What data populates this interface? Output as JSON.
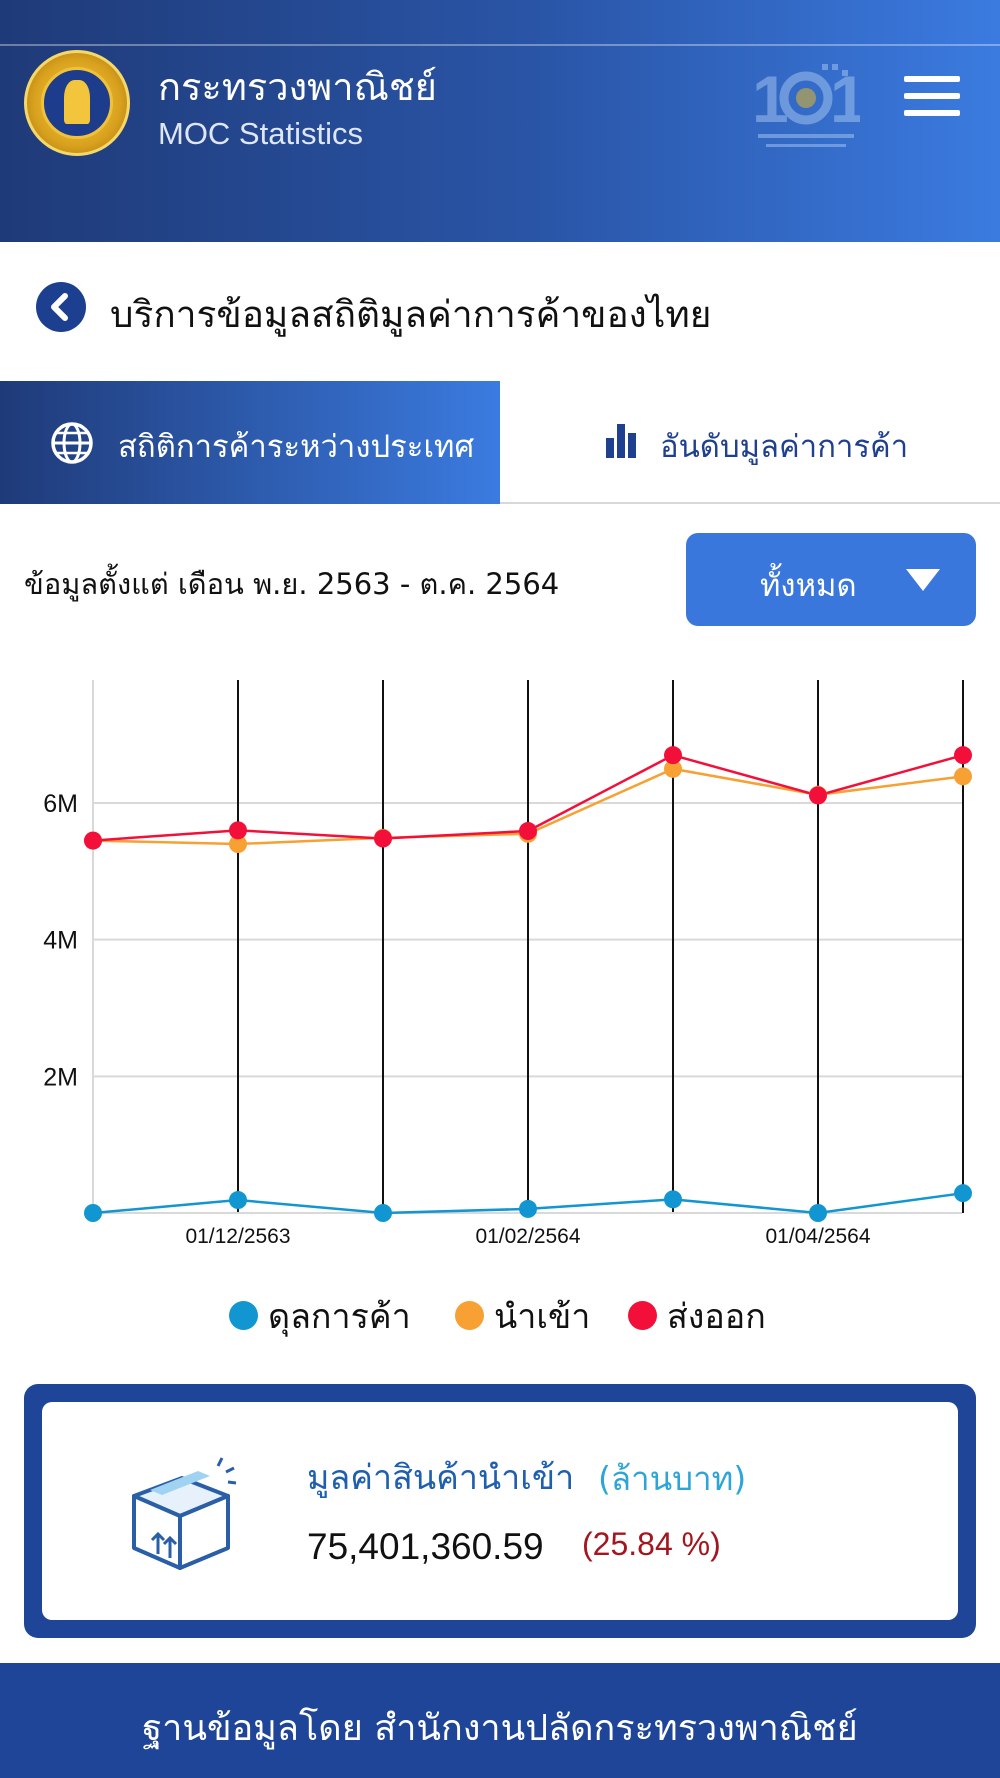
{
  "header": {
    "org_name": "กระทรวงพาณิชย์",
    "app_name": "MOC Statistics",
    "menu_icon": "hamburger-menu-icon",
    "logo_icon": "ministry-101-logo"
  },
  "page": {
    "title": "บริการข้อมูลสถิติมูลค่าการค้าของไทย",
    "back_icon": "chevron-left-icon"
  },
  "tabs": [
    {
      "label": "สถิติการค้าระหว่างประเทศ",
      "icon": "globe-icon",
      "active": true
    },
    {
      "label": "อันดับมูลค่าการค้า",
      "icon": "bar-chart-icon",
      "active": false
    }
  ],
  "filter": {
    "range_text": "ข้อมูลตั้งแต่ เดือน พ.ย. 2563 - ต.ค. 2564",
    "selected": "ทั้งหมด"
  },
  "colors": {
    "balance": "#1196d1",
    "import": "#f7a033",
    "export": "#f2103a",
    "header_dark": "#1f3a78",
    "accent_blue": "#3a77dc"
  },
  "chart_data": {
    "type": "line",
    "x": [
      "01/11/2563",
      "01/12/2563",
      "01/01/2564",
      "01/02/2564",
      "01/03/2564",
      "01/04/2564",
      "01/05/2564"
    ],
    "x_tick_labels": [
      "01/12/2563",
      "01/02/2564",
      "01/04/2564"
    ],
    "y_tick_labels": [
      "2M",
      "4M",
      "6M"
    ],
    "ylim": [
      0,
      7800000
    ],
    "series": [
      {
        "name": "ดุลการค้า",
        "values": [
          0,
          190000,
          0,
          60000,
          200000,
          0,
          290000
        ]
      },
      {
        "name": "นำเข้า",
        "values": [
          5450000,
          5400000,
          5490000,
          5550000,
          6500000,
          6120000,
          6390000
        ]
      },
      {
        "name": "ส่งออก",
        "values": [
          5450000,
          5600000,
          5480000,
          5590000,
          6700000,
          6110000,
          6700000
        ]
      }
    ],
    "grid": true,
    "legend": "bottom"
  },
  "summary": {
    "title": "มูลค่าสินค้านำเข้า",
    "unit": "(ล้านบาท)",
    "value": "75,401,360.59",
    "percent": "(25.84 %)",
    "icon": "package-box-icon"
  },
  "footer": {
    "text": "ฐานข้อมูลโดย สำนักงานปลัดกระทรวงพาณิชย์"
  }
}
